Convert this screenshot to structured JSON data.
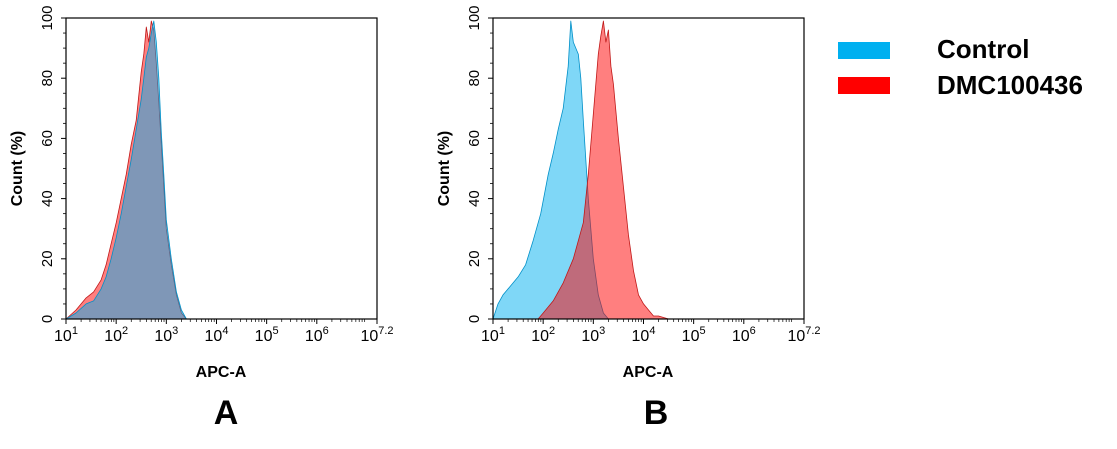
{
  "legend": [
    {
      "label": "Control",
      "color": "#00b0f0"
    },
    {
      "label": "DMC100436",
      "color": "#ff0000"
    }
  ],
  "chart_data": [
    {
      "type": "area",
      "panel": "A",
      "xlabel": "APC-A",
      "ylabel": "Count  (%)",
      "xscale": "log",
      "xlim": [
        1,
        7.2
      ],
      "ylim": [
        0,
        100
      ],
      "xticks": [
        {
          "base": "10",
          "exp": "1"
        },
        {
          "base": "10",
          "exp": "2"
        },
        {
          "base": "10",
          "exp": "3"
        },
        {
          "base": "10",
          "exp": "4"
        },
        {
          "base": "10",
          "exp": "5"
        },
        {
          "base": "10",
          "exp": "6"
        },
        {
          "base": "10",
          "exp": "7.2"
        }
      ],
      "yticks": [
        "0",
        "20",
        "40",
        "60",
        "80",
        "100"
      ],
      "series": [
        {
          "name": "DMC100436",
          "color": "#ff0000",
          "x": [
            1.0,
            1.2,
            1.4,
            1.55,
            1.7,
            1.8,
            1.9,
            2.0,
            2.1,
            2.2,
            2.3,
            2.4,
            2.5,
            2.55,
            2.6,
            2.65,
            2.7,
            2.75,
            2.8,
            2.85,
            2.9,
            2.95,
            3.0,
            3.1,
            3.2,
            3.3,
            3.4,
            3.5
          ],
          "y": [
            0,
            3,
            7,
            9,
            13,
            18,
            25,
            32,
            40,
            48,
            58,
            66,
            82,
            88,
            97,
            92,
            99,
            96,
            85,
            72,
            58,
            44,
            30,
            18,
            8,
            2,
            0,
            0
          ]
        },
        {
          "name": "Control",
          "color": "#00b0f0",
          "x": [
            1.0,
            1.2,
            1.4,
            1.55,
            1.7,
            1.8,
            1.9,
            2.0,
            2.1,
            2.2,
            2.3,
            2.4,
            2.5,
            2.55,
            2.6,
            2.65,
            2.7,
            2.75,
            2.8,
            2.85,
            2.9,
            2.95,
            3.0,
            3.1,
            3.2,
            3.3,
            3.4,
            3.5
          ],
          "y": [
            0,
            2,
            5,
            6,
            10,
            14,
            20,
            27,
            35,
            44,
            53,
            63,
            73,
            80,
            87,
            90,
            95,
            99,
            92,
            80,
            62,
            48,
            33,
            20,
            9,
            3,
            0,
            0
          ]
        }
      ]
    },
    {
      "type": "area",
      "panel": "B",
      "xlabel": "APC-A",
      "ylabel": "Count  (%)",
      "xscale": "log",
      "xlim": [
        1,
        7.2
      ],
      "ylim": [
        0,
        100
      ],
      "xticks": [
        {
          "base": "10",
          "exp": "1"
        },
        {
          "base": "10",
          "exp": "2"
        },
        {
          "base": "10",
          "exp": "3"
        },
        {
          "base": "10",
          "exp": "4"
        },
        {
          "base": "10",
          "exp": "5"
        },
        {
          "base": "10",
          "exp": "6"
        },
        {
          "base": "10",
          "exp": "7.2"
        }
      ],
      "yticks": [
        "0",
        "20",
        "40",
        "60",
        "80",
        "100"
      ],
      "series": [
        {
          "name": "Control",
          "color": "#00b0f0",
          "x": [
            1.0,
            1.1,
            1.2,
            1.35,
            1.5,
            1.65,
            1.8,
            1.95,
            2.1,
            2.2,
            2.3,
            2.4,
            2.5,
            2.55,
            2.6,
            2.65,
            2.7,
            2.75,
            2.8,
            2.9,
            3.0,
            3.1,
            3.2,
            3.3
          ],
          "y": [
            0,
            5,
            8,
            11,
            14,
            18,
            26,
            35,
            48,
            55,
            63,
            70,
            84,
            99,
            92,
            90,
            88,
            80,
            66,
            40,
            20,
            8,
            2,
            0
          ]
        },
        {
          "name": "DMC100436",
          "color": "#ff0000",
          "x": [
            1.9,
            2.0,
            2.2,
            2.4,
            2.6,
            2.8,
            2.9,
            3.0,
            3.1,
            3.15,
            3.2,
            3.25,
            3.3,
            3.35,
            3.4,
            3.5,
            3.6,
            3.7,
            3.8,
            3.9,
            4.0,
            4.1,
            4.2,
            4.3,
            4.5
          ],
          "y": [
            0,
            2,
            6,
            12,
            20,
            32,
            48,
            68,
            88,
            94,
            99,
            92,
            96,
            84,
            78,
            60,
            44,
            28,
            16,
            8,
            5,
            3,
            1,
            1,
            0
          ]
        }
      ]
    }
  ],
  "panels": [
    "A",
    "B"
  ]
}
